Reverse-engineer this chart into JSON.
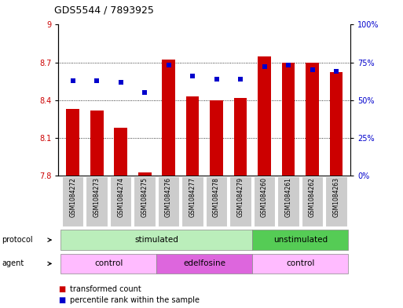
{
  "title": "GDS5544 / 7893925",
  "samples": [
    "GSM1084272",
    "GSM1084273",
    "GSM1084274",
    "GSM1084275",
    "GSM1084276",
    "GSM1084277",
    "GSM1084278",
    "GSM1084279",
    "GSM1084260",
    "GSM1084261",
    "GSM1084262",
    "GSM1084263"
  ],
  "bar_values": [
    8.33,
    8.32,
    8.18,
    7.825,
    8.72,
    8.43,
    8.4,
    8.42,
    8.75,
    8.7,
    8.7,
    8.62
  ],
  "dot_values": [
    63,
    63,
    62,
    55,
    73,
    66,
    64,
    64,
    72,
    73,
    70,
    69
  ],
  "ylim_left": [
    7.8,
    9.0
  ],
  "ylim_right": [
    0,
    100
  ],
  "yticks_left": [
    7.8,
    8.1,
    8.4,
    8.7,
    9.0
  ],
  "yticks_right": [
    0,
    25,
    50,
    75,
    100
  ],
  "ytick_labels_right": [
    "0%",
    "25%",
    "50%",
    "75%",
    "100%"
  ],
  "bar_color": "#CC0000",
  "dot_color": "#0000CC",
  "bar_bottom": 7.8,
  "protocol_items": [
    {
      "label": "stimulated",
      "start": 0,
      "end": 8,
      "color": "#BBEEBB"
    },
    {
      "label": "unstimulated",
      "start": 8,
      "end": 12,
      "color": "#55CC55"
    }
  ],
  "agent_items": [
    {
      "label": "control",
      "start": 0,
      "end": 4,
      "color": "#FFBBFF"
    },
    {
      "label": "edelfosine",
      "start": 4,
      "end": 8,
      "color": "#DD66DD"
    },
    {
      "label": "control",
      "start": 8,
      "end": 12,
      "color": "#FFBBFF"
    }
  ],
  "protocol_label": "protocol",
  "agent_label": "agent",
  "legend": [
    {
      "label": "transformed count",
      "color": "#CC0000"
    },
    {
      "label": "percentile rank within the sample",
      "color": "#0000CC"
    }
  ],
  "grid_lines": [
    8.1,
    8.4,
    8.7
  ],
  "sample_bg_color": "#CCCCCC",
  "grid_yticks_left_labels": [
    "7.8",
    "8.1",
    "8.4",
    "8.7",
    "9"
  ]
}
